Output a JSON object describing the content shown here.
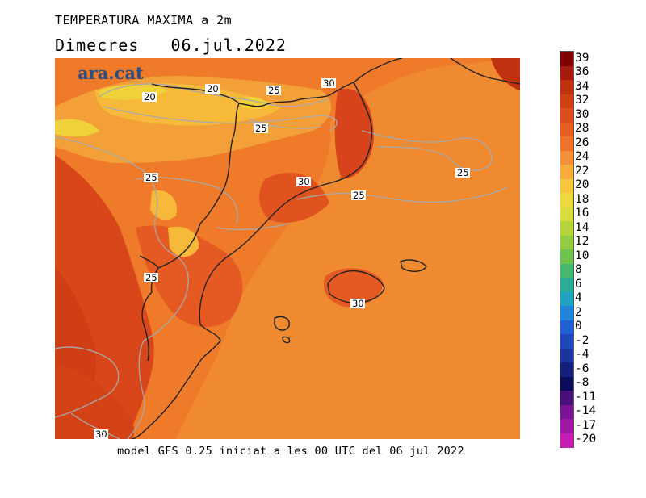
{
  "title": "TEMPERATURA MAXIMA a 2m",
  "subtitle_day": "Dimecres",
  "subtitle_date": "06.jul.2022",
  "logo": "ara.cat",
  "footer": "model GFS 0.25 iniciat a les 00 UTC del 06 jul 2022",
  "legend": {
    "labels": [
      "39",
      "36",
      "34",
      "32",
      "30",
      "28",
      "26",
      "24",
      "22",
      "20",
      "18",
      "16",
      "14",
      "12",
      "10",
      "8",
      "6",
      "4",
      "2",
      "0",
      "-2",
      "-4",
      "-6",
      "-8",
      "-11",
      "-14",
      "-17",
      "-20"
    ],
    "colors": [
      "#800000",
      "#a81a0d",
      "#c0310f",
      "#d23f14",
      "#e04d1c",
      "#ea5d22",
      "#f07228",
      "#f69036",
      "#f8ac3a",
      "#f7c63a",
      "#eed83a",
      "#d8dd3a",
      "#b6d43a",
      "#92cc40",
      "#6ec34c",
      "#44b86e",
      "#2aad96",
      "#20a3c2",
      "#2085dd",
      "#2060d2",
      "#2048bd",
      "#1c34a0",
      "#14207c",
      "#0c0c5c",
      "#48107a",
      "#7a1494",
      "#a218a6",
      "#c81cb2"
    ]
  },
  "contour_labels": [
    {
      "text": "20"
    },
    {
      "text": "20"
    },
    {
      "text": "25"
    },
    {
      "text": "30"
    },
    {
      "text": "25"
    },
    {
      "text": "25"
    },
    {
      "text": "30"
    },
    {
      "text": "25"
    },
    {
      "text": "25"
    },
    {
      "text": "25"
    },
    {
      "text": "30"
    },
    {
      "text": "30"
    }
  ]
}
